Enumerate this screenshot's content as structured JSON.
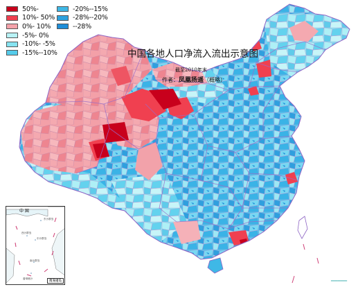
{
  "title": "中国各地人口净流入流出示意图",
  "subtitle": "截至2010年末",
  "author_prefix": "作者：",
  "author_name": "凤凰扬遥",
  "author_suffix": "（概略）",
  "legend": [
    {
      "label": "50%-",
      "color": "#c8001c"
    },
    {
      "label": "10%- 50%",
      "color": "#f04050"
    },
    {
      "label": "0%- 10%",
      "color": "#f4a2aa"
    },
    {
      "label": "-5%- 0%",
      "color": "#b8f2f5"
    },
    {
      "label": "-10%- -5%",
      "color": "#86e3f0"
    },
    {
      "label": "-15%--10%",
      "color": "#55cbea"
    },
    {
      "label": "-20%--15%",
      "color": "#3fb8e6"
    },
    {
      "label": "-28%--20%",
      "color": "#2ea2df"
    },
    {
      "label": "--28%",
      "color": "#1f8ed8"
    }
  ],
  "inset": {
    "title": "中 国",
    "caption": "南海诸岛",
    "labels": [
      "东沙群岛",
      "西沙群岛",
      "中沙群岛",
      "南沙群岛",
      "曾母暗沙"
    ]
  },
  "scale_text": "▔▔▔▔▔"
}
